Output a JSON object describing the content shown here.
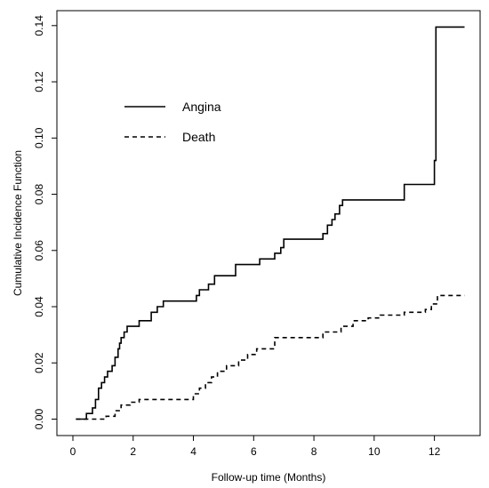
{
  "chart_data": {
    "type": "line",
    "title": "",
    "xlabel": "Follow-up time (Months)",
    "ylabel": "Cumulative Incidence Function",
    "xlim": [
      0,
      13
    ],
    "ylim": [
      0,
      0.14
    ],
    "xticks": [
      0,
      2,
      4,
      6,
      8,
      10,
      12
    ],
    "xtick_labels": [
      "0",
      "2",
      "4",
      "6",
      "8",
      "10",
      "12"
    ],
    "yticks": [
      0,
      0.02,
      0.04,
      0.06,
      0.08,
      0.1,
      0.12,
      0.14
    ],
    "ytick_labels": [
      "0.00",
      "0.02",
      "0.04",
      "0.06",
      "0.08",
      "0.10",
      "0.12",
      "0.14"
    ],
    "grid": false,
    "legend_position": "upper-left",
    "step": true,
    "series": [
      {
        "name": "Angina",
        "line_style": "solid",
        "x": [
          0.1,
          0.45,
          0.65,
          0.75,
          0.85,
          0.95,
          1.05,
          1.15,
          1.3,
          1.4,
          1.5,
          1.55,
          1.6,
          1.7,
          1.8,
          2.2,
          2.6,
          2.8,
          3.0,
          4.1,
          4.2,
          4.5,
          4.7,
          5.4,
          6.2,
          6.7,
          6.9,
          7.0,
          8.3,
          8.45,
          8.6,
          8.7,
          8.85,
          8.95,
          9.1,
          11.0,
          12.0,
          12.05,
          13.0
        ],
        "y": [
          0.0,
          0.002,
          0.004,
          0.007,
          0.011,
          0.013,
          0.015,
          0.017,
          0.019,
          0.022,
          0.025,
          0.027,
          0.029,
          0.031,
          0.033,
          0.035,
          0.038,
          0.04,
          0.042,
          0.044,
          0.046,
          0.048,
          0.051,
          0.055,
          0.057,
          0.059,
          0.061,
          0.064,
          0.066,
          0.069,
          0.071,
          0.073,
          0.076,
          0.078,
          0.078,
          0.0835,
          0.092,
          0.1395,
          0.1395
        ]
      },
      {
        "name": "Death",
        "line_style": "dashed",
        "x": [
          0.1,
          1.1,
          1.4,
          1.6,
          1.9,
          2.2,
          4.0,
          4.2,
          4.4,
          4.6,
          4.8,
          5.1,
          5.5,
          5.8,
          6.1,
          6.7,
          8.3,
          8.9,
          9.3,
          9.8,
          10.2,
          11.0,
          11.7,
          11.9,
          12.1,
          13.0
        ],
        "y": [
          0.0,
          0.001,
          0.003,
          0.005,
          0.006,
          0.007,
          0.009,
          0.011,
          0.013,
          0.015,
          0.017,
          0.019,
          0.021,
          0.023,
          0.025,
          0.029,
          0.031,
          0.033,
          0.035,
          0.036,
          0.037,
          0.038,
          0.039,
          0.041,
          0.044,
          0.044
        ]
      }
    ]
  }
}
